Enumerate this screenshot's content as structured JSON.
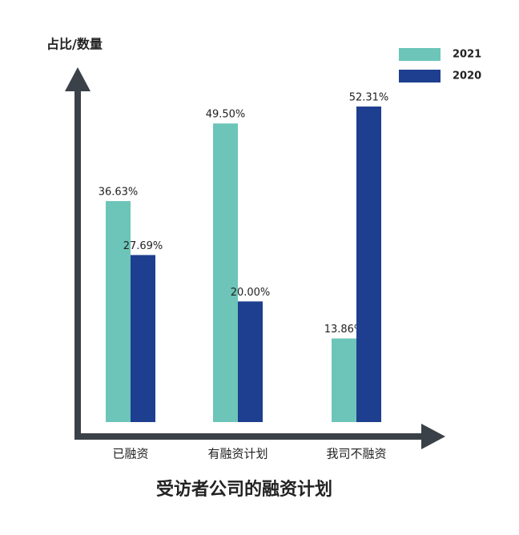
{
  "chart_data": {
    "type": "bar",
    "title": "受访者公司的融资计划",
    "y_label": "占比/数量",
    "categories": [
      "已融资",
      "有融资计划",
      "我司不融资"
    ],
    "series": [
      {
        "name": "2021",
        "color": "#6cc5b8",
        "values": [
          36.63,
          49.5,
          13.86
        ],
        "value_labels": [
          "36.63%",
          "49.50%",
          "13.86%"
        ]
      },
      {
        "name": "2020",
        "color": "#1e3f8f",
        "values": [
          27.69,
          20.0,
          52.31
        ],
        "value_labels": [
          "27.69%",
          "20.00%",
          "52.31%"
        ]
      }
    ],
    "legend": "top-right"
  }
}
